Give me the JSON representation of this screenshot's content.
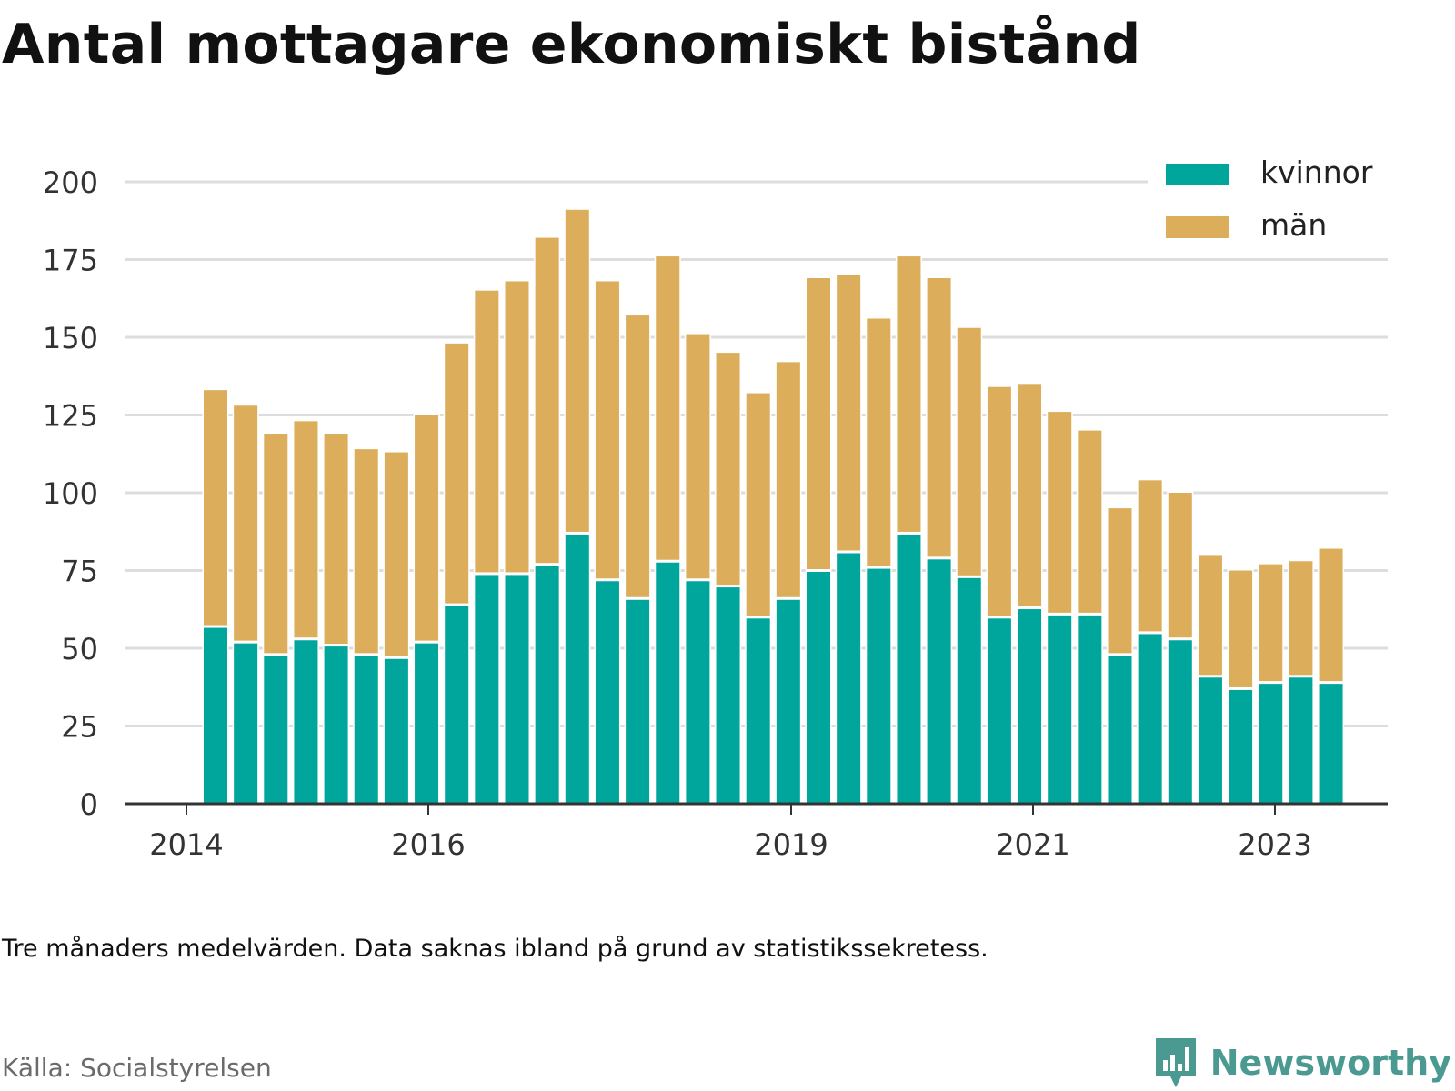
{
  "title": "Antal mottagare ekonomiskt bistånd",
  "note": "Tre månaders medelvärden. Data saknas ibland på grund av statistikssekretess.",
  "source": "Källa: Socialstyrelsen",
  "brand": {
    "name": "Newsworthy",
    "icon": "newsworthy-bar-chart-icon",
    "color": "#4a9a92"
  },
  "colors": {
    "kvinnor": "#00a69c",
    "man": "#dcae5c",
    "grid": "#dddddd",
    "axis": "#333333"
  },
  "chart_data": {
    "type": "bar",
    "stacked": true,
    "ylim": [
      0,
      200
    ],
    "yticks": [
      0,
      25,
      50,
      75,
      100,
      125,
      150,
      175,
      200
    ],
    "grid": true,
    "legend_position": "top-right",
    "x_tick_labels": [
      "2014",
      "2016",
      "2019",
      "2021",
      "2023"
    ],
    "categories": [
      "2014-Q2",
      "2014-Q3",
      "2014-Q4",
      "2015-Q1",
      "2015-Q2",
      "2015-Q3",
      "2015-Q4",
      "2016-Q1",
      "2016-Q2",
      "2016-Q3",
      "2016-Q4",
      "2017-Q1",
      "2017-Q2",
      "2017-Q3",
      "2017-Q4",
      "2018-Q1",
      "2018-Q2",
      "2018-Q3",
      "2018-Q4",
      "2019-Q1",
      "2019-Q2",
      "2019-Q3",
      "2019-Q4",
      "2020-Q1",
      "2020-Q2",
      "2020-Q3",
      "2020-Q4",
      "2021-Q1",
      "2021-Q2",
      "2021-Q3",
      "2021-Q4",
      "2022-Q1",
      "2022-Q2",
      "2022-Q3",
      "2022-Q4",
      "2023-Q1",
      "2023-Q2",
      "2023-Q3"
    ],
    "series": [
      {
        "name": "kvinnor",
        "values": [
          57,
          52,
          48,
          53,
          51,
          48,
          47,
          52,
          64,
          74,
          74,
          77,
          87,
          72,
          66,
          78,
          72,
          70,
          60,
          66,
          75,
          81,
          76,
          87,
          79,
          73,
          60,
          63,
          61,
          61,
          48,
          55,
          53,
          41,
          37,
          39,
          41,
          39
        ]
      },
      {
        "name": "män",
        "values": [
          76,
          76,
          71,
          70,
          68,
          66,
          66,
          73,
          84,
          91,
          94,
          105,
          104,
          96,
          91,
          98,
          79,
          75,
          72,
          76,
          94,
          89,
          80,
          89,
          90,
          80,
          74,
          72,
          65,
          59,
          47,
          49,
          47,
          39,
          38,
          38,
          37,
          43
        ]
      }
    ]
  }
}
